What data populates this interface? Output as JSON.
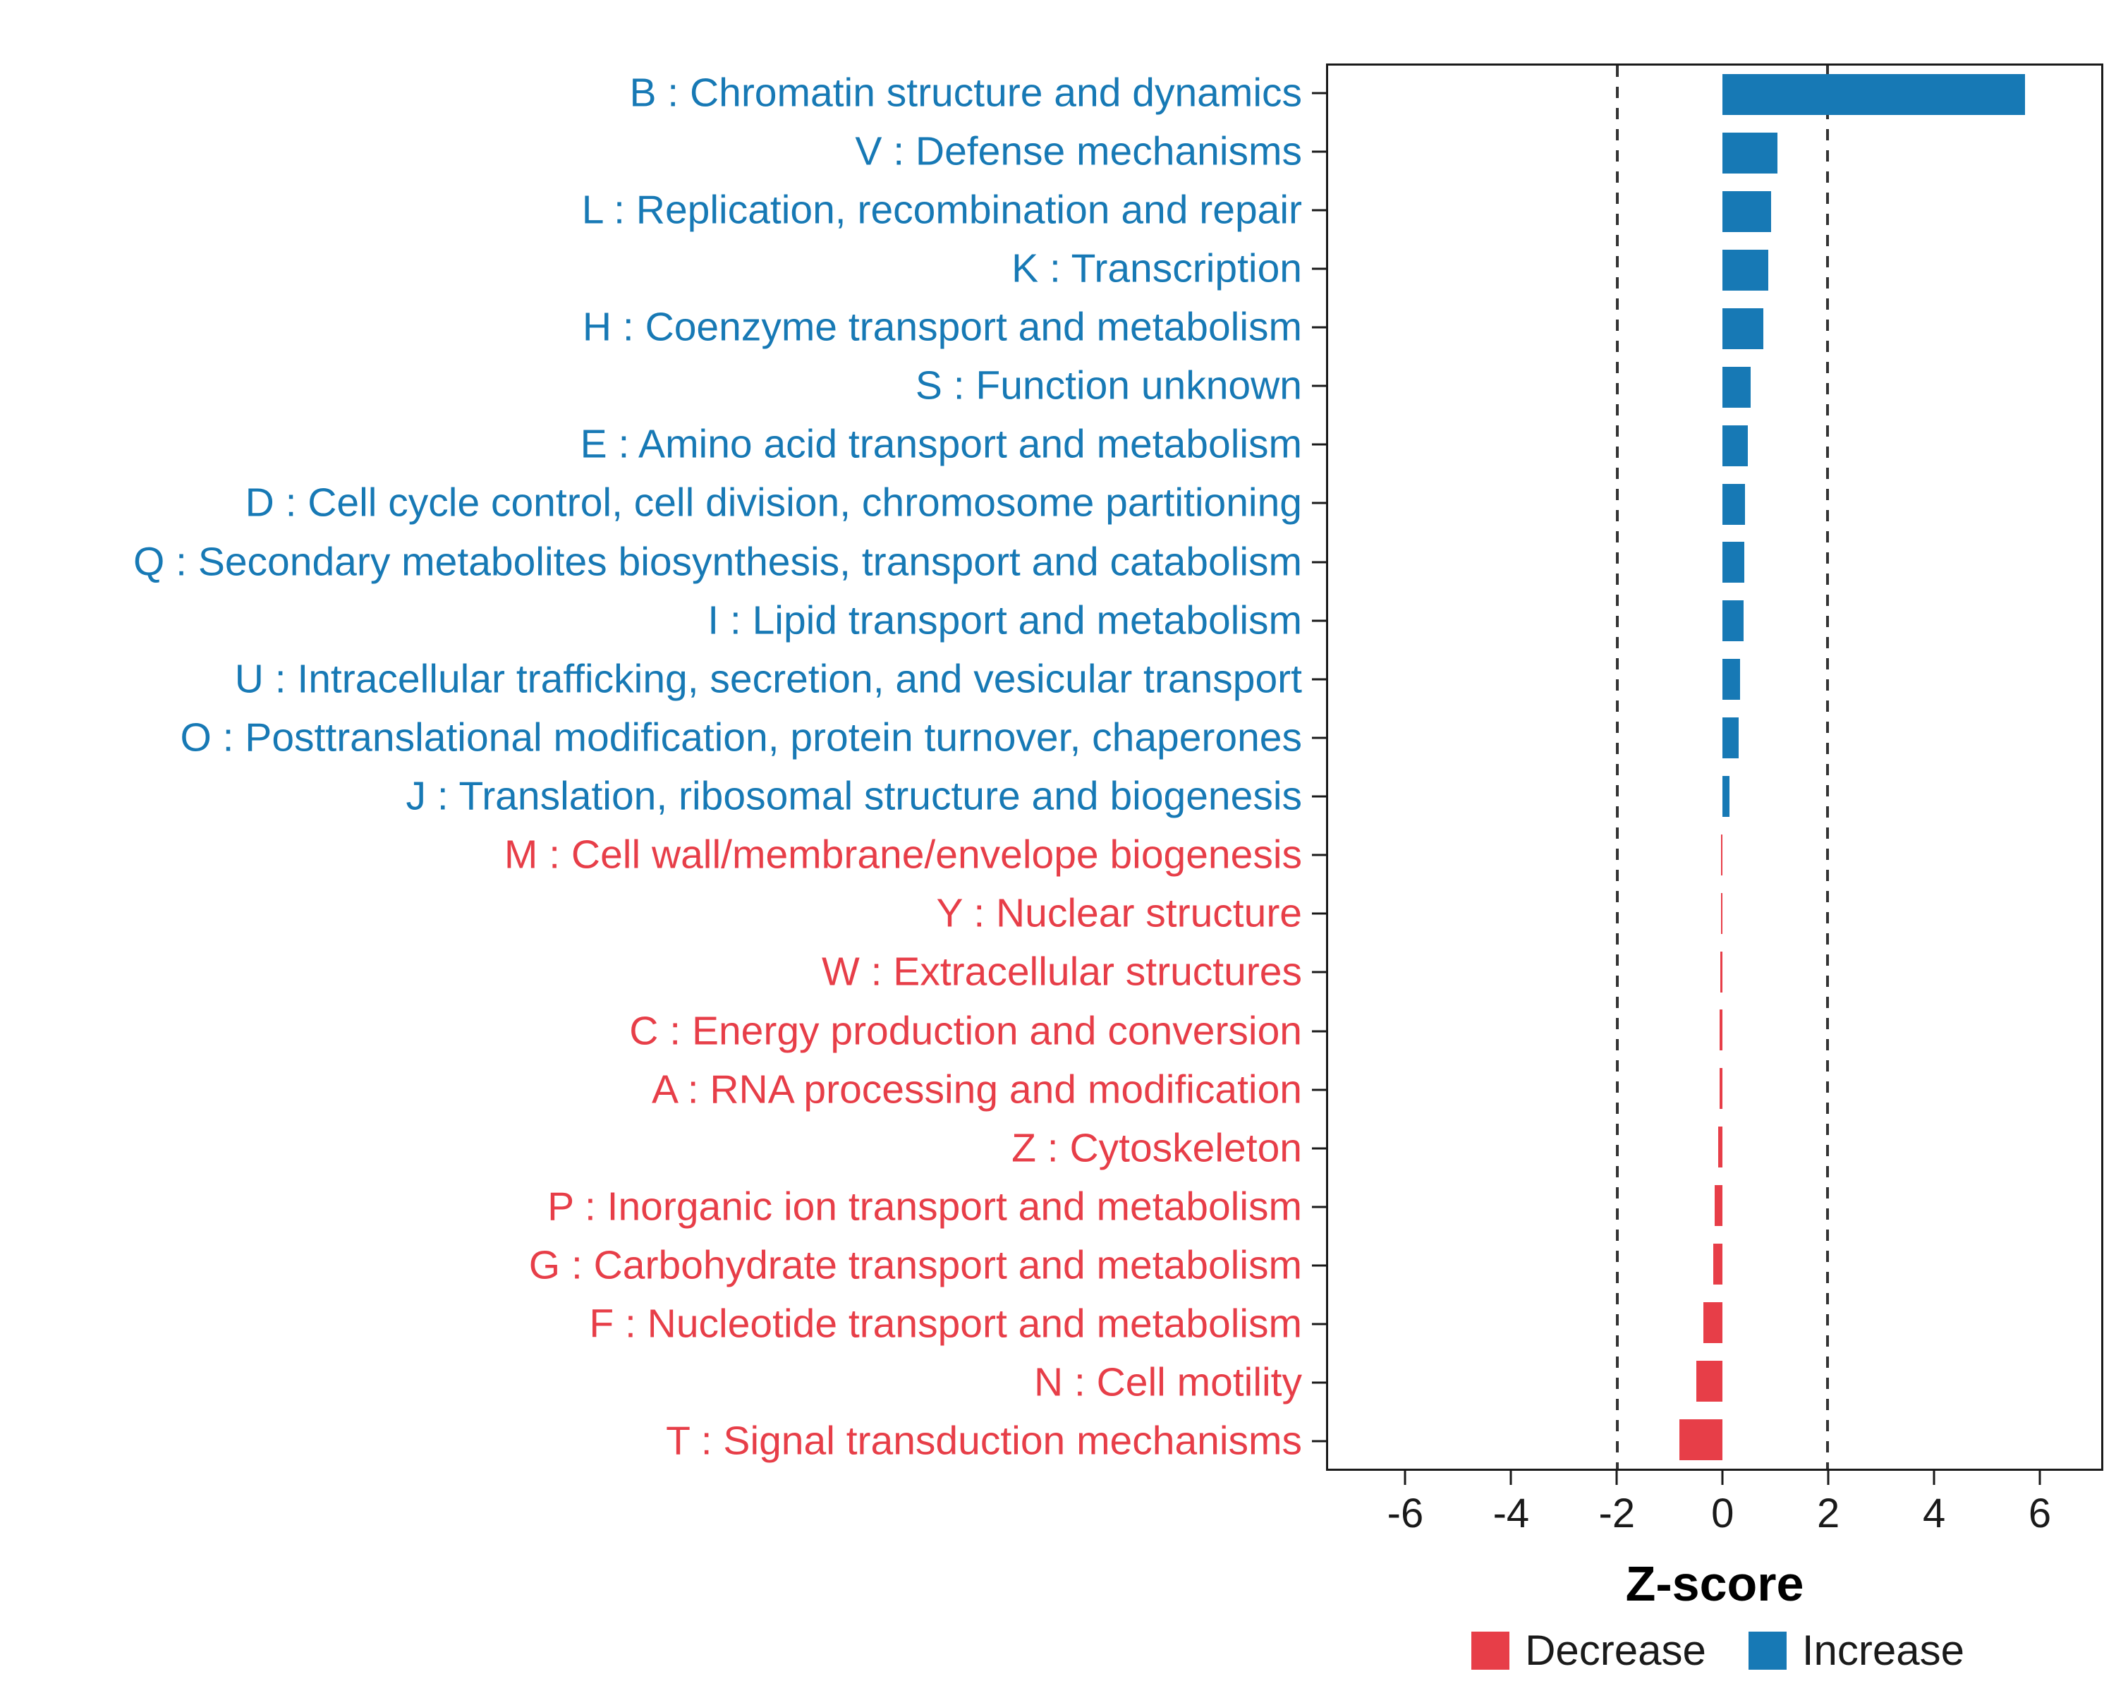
{
  "chart_data": {
    "type": "bar",
    "orientation": "horizontal",
    "title": "",
    "xlabel": "Z-score",
    "ylabel": "",
    "xlim": [
      -7.5,
      7.2
    ],
    "x_ticks": [
      -6,
      -4,
      -2,
      0,
      2,
      4,
      6
    ],
    "reference_lines": [
      -2,
      2
    ],
    "grid": false,
    "colors": {
      "increase": "#1779b5",
      "decrease": "#e73e48",
      "axis": "#1a1a1a",
      "refline": "#333333"
    },
    "legend": {
      "position": "bottom-right",
      "items": [
        {
          "label": "Decrease",
          "color": "#e73e48"
        },
        {
          "label": "Increase",
          "color": "#1779b5"
        }
      ]
    },
    "series": [
      {
        "code": "B",
        "label": "B : Chromatin structure and dynamics",
        "value": 5.75,
        "group": "Increase"
      },
      {
        "code": "V",
        "label": "V : Defense mechanisms",
        "value": 1.05,
        "group": "Increase"
      },
      {
        "code": "L",
        "label": "L : Replication, recombination and repair",
        "value": 0.92,
        "group": "Increase"
      },
      {
        "code": "K",
        "label": "K : Transcription",
        "value": 0.87,
        "group": "Increase"
      },
      {
        "code": "H",
        "label": "H : Coenzyme transport and metabolism",
        "value": 0.78,
        "group": "Increase"
      },
      {
        "code": "S",
        "label": "S : Function unknown",
        "value": 0.54,
        "group": "Increase"
      },
      {
        "code": "E",
        "label": "E : Amino acid transport and metabolism",
        "value": 0.48,
        "group": "Increase"
      },
      {
        "code": "D",
        "label": "D : Cell cycle control, cell division, chromosome partitioning",
        "value": 0.43,
        "group": "Increase"
      },
      {
        "code": "Q",
        "label": "Q : Secondary metabolites biosynthesis, transport and catabolism",
        "value": 0.41,
        "group": "Increase"
      },
      {
        "code": "I",
        "label": "I : Lipid transport and metabolism",
        "value": 0.4,
        "group": "Increase"
      },
      {
        "code": "U",
        "label": "U : Intracellular trafficking, secretion, and vesicular transport",
        "value": 0.33,
        "group": "Increase"
      },
      {
        "code": "O",
        "label": "O : Posttranslational modification, protein turnover, chaperones",
        "value": 0.31,
        "group": "Increase"
      },
      {
        "code": "J",
        "label": "J : Translation, ribosomal structure and biogenesis",
        "value": 0.13,
        "group": "Increase"
      },
      {
        "code": "M",
        "label": "M : Cell wall/membrane/envelope biogenesis",
        "value": -0.03,
        "group": "Decrease"
      },
      {
        "code": "Y",
        "label": "Y : Nuclear structure",
        "value": -0.03,
        "group": "Decrease"
      },
      {
        "code": "W",
        "label": "W : Extracellular structures",
        "value": -0.04,
        "group": "Decrease"
      },
      {
        "code": "C",
        "label": "C : Energy production and conversion",
        "value": -0.05,
        "group": "Decrease"
      },
      {
        "code": "A",
        "label": "A : RNA processing and modification",
        "value": -0.06,
        "group": "Decrease"
      },
      {
        "code": "Z",
        "label": "Z : Cytoskeleton",
        "value": -0.08,
        "group": "Decrease"
      },
      {
        "code": "P",
        "label": "P : Inorganic ion transport and metabolism",
        "value": -0.15,
        "group": "Decrease"
      },
      {
        "code": "G",
        "label": "G : Carbohydrate transport and metabolism",
        "value": -0.18,
        "group": "Decrease"
      },
      {
        "code": "F",
        "label": "F : Nucleotide transport and metabolism",
        "value": -0.36,
        "group": "Decrease"
      },
      {
        "code": "N",
        "label": "N : Cell motility",
        "value": -0.5,
        "group": "Decrease"
      },
      {
        "code": "T",
        "label": "T : Signal transduction mechanisms",
        "value": -0.82,
        "group": "Decrease"
      }
    ]
  }
}
